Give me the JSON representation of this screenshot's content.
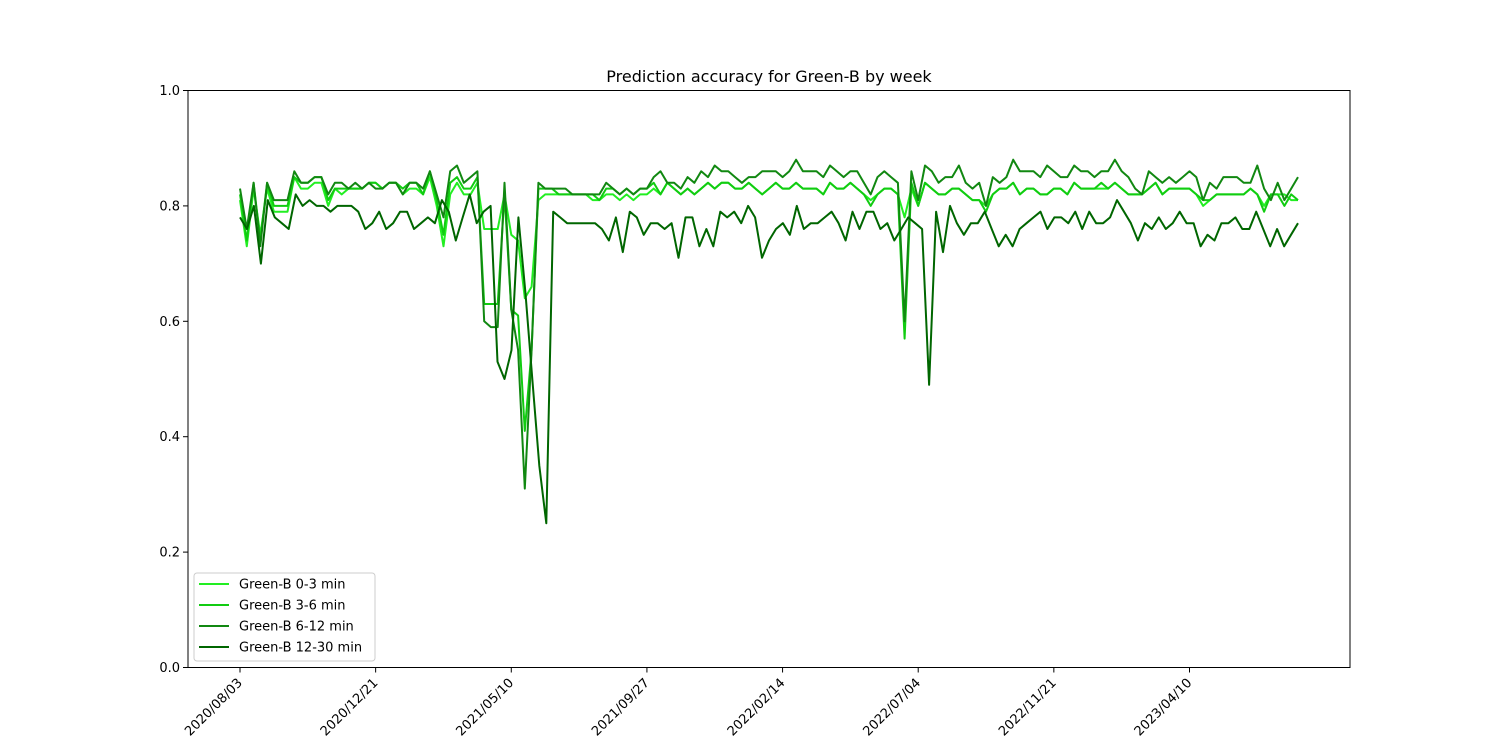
{
  "chart_data": {
    "type": "line",
    "title": "Prediction accuracy for Green-B by week",
    "xlabel": "",
    "ylabel": "",
    "ylim": [
      0.0,
      1.0
    ],
    "x_ticks": [
      "2020/08/03",
      "2020/12/21",
      "2021/05/10",
      "2021/09/27",
      "2022/02/14",
      "2022/07/04",
      "2022/11/21",
      "2023/04/10"
    ],
    "y_ticks": [
      "0.0",
      "0.2",
      "0.4",
      "0.6",
      "0.8",
      "1.0"
    ],
    "legend_position": "lower-left",
    "grid": false,
    "x_start": "2020/08/03",
    "x_end": "2023/07/31",
    "series": [
      {
        "name": "Green-B 0-3 min",
        "color": "#22ee22",
        "values": [
          0.81,
          0.73,
          0.83,
          0.75,
          0.83,
          0.79,
          0.79,
          0.79,
          0.85,
          0.83,
          0.83,
          0.84,
          0.84,
          0.8,
          0.83,
          0.82,
          0.83,
          0.83,
          0.83,
          0.84,
          0.84,
          0.83,
          0.84,
          0.84,
          0.82,
          0.83,
          0.83,
          0.82,
          0.85,
          0.8,
          0.73,
          0.82,
          0.84,
          0.82,
          0.82,
          0.84,
          0.76,
          0.76,
          0.76,
          0.82,
          0.75,
          0.74,
          0.64,
          0.66,
          0.81,
          0.82,
          0.82,
          0.82,
          0.82,
          0.82,
          0.82,
          0.82,
          0.81,
          0.81,
          0.82,
          0.82,
          0.81,
          0.82,
          0.81,
          0.82,
          0.82,
          0.83,
          0.82,
          0.84,
          0.83,
          0.82,
          0.83,
          0.82,
          0.83,
          0.84,
          0.83,
          0.84,
          0.84,
          0.83,
          0.83,
          0.84,
          0.83,
          0.82,
          0.83,
          0.84,
          0.83,
          0.83,
          0.84,
          0.83,
          0.83,
          0.83,
          0.82,
          0.84,
          0.83,
          0.83,
          0.84,
          0.83,
          0.82,
          0.81,
          0.82,
          0.83,
          0.83,
          0.82,
          0.78,
          0.83,
          0.8,
          0.84,
          0.83,
          0.82,
          0.82,
          0.83,
          0.83,
          0.82,
          0.81,
          0.81,
          0.8,
          0.82,
          0.83,
          0.83,
          0.84,
          0.82,
          0.83,
          0.83,
          0.82,
          0.82,
          0.83,
          0.83,
          0.82,
          0.84,
          0.83,
          0.83,
          0.83,
          0.83,
          0.83,
          0.84,
          0.83,
          0.82,
          0.82,
          0.82,
          0.83,
          0.84,
          0.82,
          0.83,
          0.83,
          0.83,
          0.83,
          0.82,
          0.8,
          0.81,
          0.82,
          0.82,
          0.82,
          0.82,
          0.82,
          0.83,
          0.82,
          0.8,
          0.82,
          0.82,
          0.82,
          0.81,
          0.81
        ]
      },
      {
        "name": "Green-B 3-6 min",
        "color": "#11cc11",
        "values": [
          0.82,
          0.74,
          0.84,
          0.74,
          0.84,
          0.8,
          0.8,
          0.8,
          0.85,
          0.84,
          0.84,
          0.85,
          0.85,
          0.81,
          0.83,
          0.83,
          0.83,
          0.83,
          0.83,
          0.84,
          0.84,
          0.83,
          0.84,
          0.84,
          0.83,
          0.84,
          0.84,
          0.82,
          0.86,
          0.81,
          0.75,
          0.84,
          0.85,
          0.83,
          0.83,
          0.85,
          0.63,
          0.63,
          0.63,
          0.82,
          0.62,
          0.61,
          0.41,
          0.55,
          0.83,
          0.83,
          0.83,
          0.82,
          0.82,
          0.82,
          0.82,
          0.82,
          0.82,
          0.81,
          0.83,
          0.83,
          0.82,
          0.83,
          0.82,
          0.83,
          0.83,
          0.84,
          0.82,
          0.84,
          0.83,
          0.82,
          0.83,
          0.82,
          0.83,
          0.84,
          0.83,
          0.84,
          0.84,
          0.83,
          0.83,
          0.84,
          0.83,
          0.82,
          0.83,
          0.84,
          0.83,
          0.83,
          0.84,
          0.83,
          0.83,
          0.83,
          0.82,
          0.84,
          0.83,
          0.83,
          0.84,
          0.83,
          0.82,
          0.8,
          0.82,
          0.83,
          0.83,
          0.82,
          0.57,
          0.84,
          0.8,
          0.84,
          0.83,
          0.82,
          0.82,
          0.83,
          0.83,
          0.82,
          0.81,
          0.81,
          0.79,
          0.82,
          0.83,
          0.83,
          0.84,
          0.82,
          0.83,
          0.83,
          0.82,
          0.82,
          0.83,
          0.83,
          0.82,
          0.84,
          0.83,
          0.83,
          0.83,
          0.84,
          0.83,
          0.84,
          0.83,
          0.82,
          0.82,
          0.82,
          0.83,
          0.84,
          0.82,
          0.83,
          0.83,
          0.83,
          0.83,
          0.82,
          0.81,
          0.81,
          0.82,
          0.82,
          0.82,
          0.82,
          0.82,
          0.83,
          0.82,
          0.79,
          0.82,
          0.82,
          0.8,
          0.82,
          0.81
        ]
      },
      {
        "name": "Green-B 6-12 min",
        "color": "#118811",
        "values": [
          0.83,
          0.76,
          0.84,
          0.73,
          0.84,
          0.81,
          0.81,
          0.81,
          0.86,
          0.84,
          0.84,
          0.85,
          0.85,
          0.82,
          0.84,
          0.84,
          0.83,
          0.84,
          0.83,
          0.84,
          0.83,
          0.83,
          0.84,
          0.84,
          0.82,
          0.84,
          0.84,
          0.83,
          0.86,
          0.82,
          0.78,
          0.86,
          0.87,
          0.84,
          0.85,
          0.86,
          0.6,
          0.59,
          0.59,
          0.84,
          0.62,
          0.55,
          0.31,
          0.55,
          0.84,
          0.83,
          0.83,
          0.83,
          0.83,
          0.82,
          0.82,
          0.82,
          0.82,
          0.82,
          0.84,
          0.83,
          0.82,
          0.83,
          0.82,
          0.83,
          0.83,
          0.85,
          0.86,
          0.84,
          0.84,
          0.83,
          0.85,
          0.84,
          0.86,
          0.85,
          0.87,
          0.86,
          0.86,
          0.85,
          0.84,
          0.85,
          0.85,
          0.86,
          0.86,
          0.86,
          0.85,
          0.86,
          0.88,
          0.86,
          0.86,
          0.86,
          0.85,
          0.87,
          0.86,
          0.85,
          0.86,
          0.86,
          0.84,
          0.82,
          0.85,
          0.86,
          0.85,
          0.84,
          0.6,
          0.86,
          0.81,
          0.87,
          0.86,
          0.84,
          0.85,
          0.85,
          0.87,
          0.84,
          0.83,
          0.84,
          0.8,
          0.85,
          0.84,
          0.85,
          0.88,
          0.86,
          0.86,
          0.86,
          0.85,
          0.87,
          0.86,
          0.85,
          0.85,
          0.87,
          0.86,
          0.86,
          0.85,
          0.86,
          0.86,
          0.88,
          0.86,
          0.85,
          0.83,
          0.82,
          0.86,
          0.85,
          0.84,
          0.85,
          0.84,
          0.85,
          0.86,
          0.85,
          0.81,
          0.84,
          0.83,
          0.85,
          0.85,
          0.85,
          0.84,
          0.84,
          0.87,
          0.83,
          0.81,
          0.84,
          0.81,
          0.83,
          0.85
        ]
      },
      {
        "name": "Green-B 12-30 min",
        "color": "#006600",
        "values": [
          0.78,
          0.76,
          0.8,
          0.7,
          0.81,
          0.78,
          0.77,
          0.76,
          0.82,
          0.8,
          0.81,
          0.8,
          0.8,
          0.79,
          0.8,
          0.8,
          0.8,
          0.79,
          0.76,
          0.77,
          0.79,
          0.76,
          0.77,
          0.79,
          0.79,
          0.76,
          0.77,
          0.78,
          0.77,
          0.81,
          0.79,
          0.74,
          0.78,
          0.82,
          0.77,
          0.79,
          0.8,
          0.53,
          0.5,
          0.55,
          0.78,
          0.65,
          0.5,
          0.35,
          0.25,
          0.79,
          0.78,
          0.77,
          0.77,
          0.77,
          0.77,
          0.77,
          0.76,
          0.74,
          0.78,
          0.72,
          0.79,
          0.78,
          0.75,
          0.77,
          0.77,
          0.76,
          0.77,
          0.71,
          0.78,
          0.78,
          0.73,
          0.76,
          0.73,
          0.79,
          0.78,
          0.79,
          0.77,
          0.8,
          0.78,
          0.71,
          0.74,
          0.76,
          0.77,
          0.75,
          0.8,
          0.76,
          0.77,
          0.77,
          0.78,
          0.79,
          0.77,
          0.74,
          0.79,
          0.76,
          0.79,
          0.79,
          0.76,
          0.77,
          0.74,
          0.76,
          0.78,
          0.77,
          0.76,
          0.49,
          0.79,
          0.72,
          0.8,
          0.77,
          0.75,
          0.77,
          0.77,
          0.79,
          0.76,
          0.73,
          0.75,
          0.73,
          0.76,
          0.77,
          0.78,
          0.79,
          0.76,
          0.78,
          0.78,
          0.77,
          0.79,
          0.76,
          0.79,
          0.77,
          0.77,
          0.78,
          0.81,
          0.79,
          0.77,
          0.74,
          0.77,
          0.76,
          0.78,
          0.76,
          0.77,
          0.79,
          0.77,
          0.77,
          0.73,
          0.75,
          0.74,
          0.77,
          0.77,
          0.78,
          0.76,
          0.76,
          0.79,
          0.76,
          0.73,
          0.76,
          0.73,
          0.75,
          0.77
        ]
      }
    ]
  }
}
